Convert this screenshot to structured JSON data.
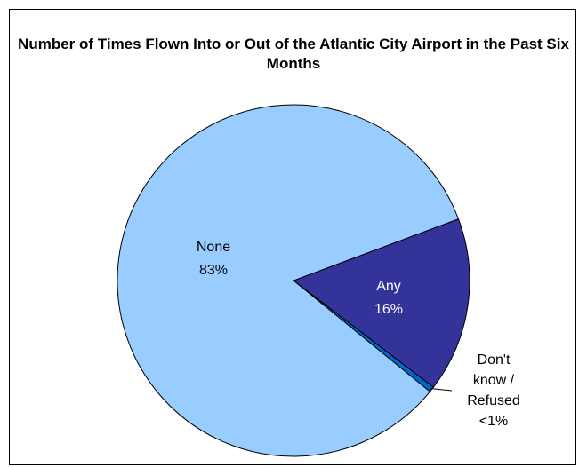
{
  "chart_data": {
    "type": "pie",
    "title": "Number of Times Flown Into or Out of the Atlantic City Airport in the Past Six Months",
    "slices": [
      {
        "label": "None",
        "value": 83,
        "display": "83%",
        "color": "#99ccff"
      },
      {
        "label": "Any",
        "value": 16,
        "display": "16%",
        "color": "#333399"
      },
      {
        "label": "Don't know / Refused",
        "value": 0.5,
        "display": "<1%",
        "color": "#0066cc"
      }
    ],
    "label_lines": [
      [
        "None",
        "83%"
      ],
      [
        "Any",
        "16%"
      ],
      [
        "Don't",
        "know /",
        "Refused",
        "<1%"
      ]
    ],
    "legend": "none"
  }
}
